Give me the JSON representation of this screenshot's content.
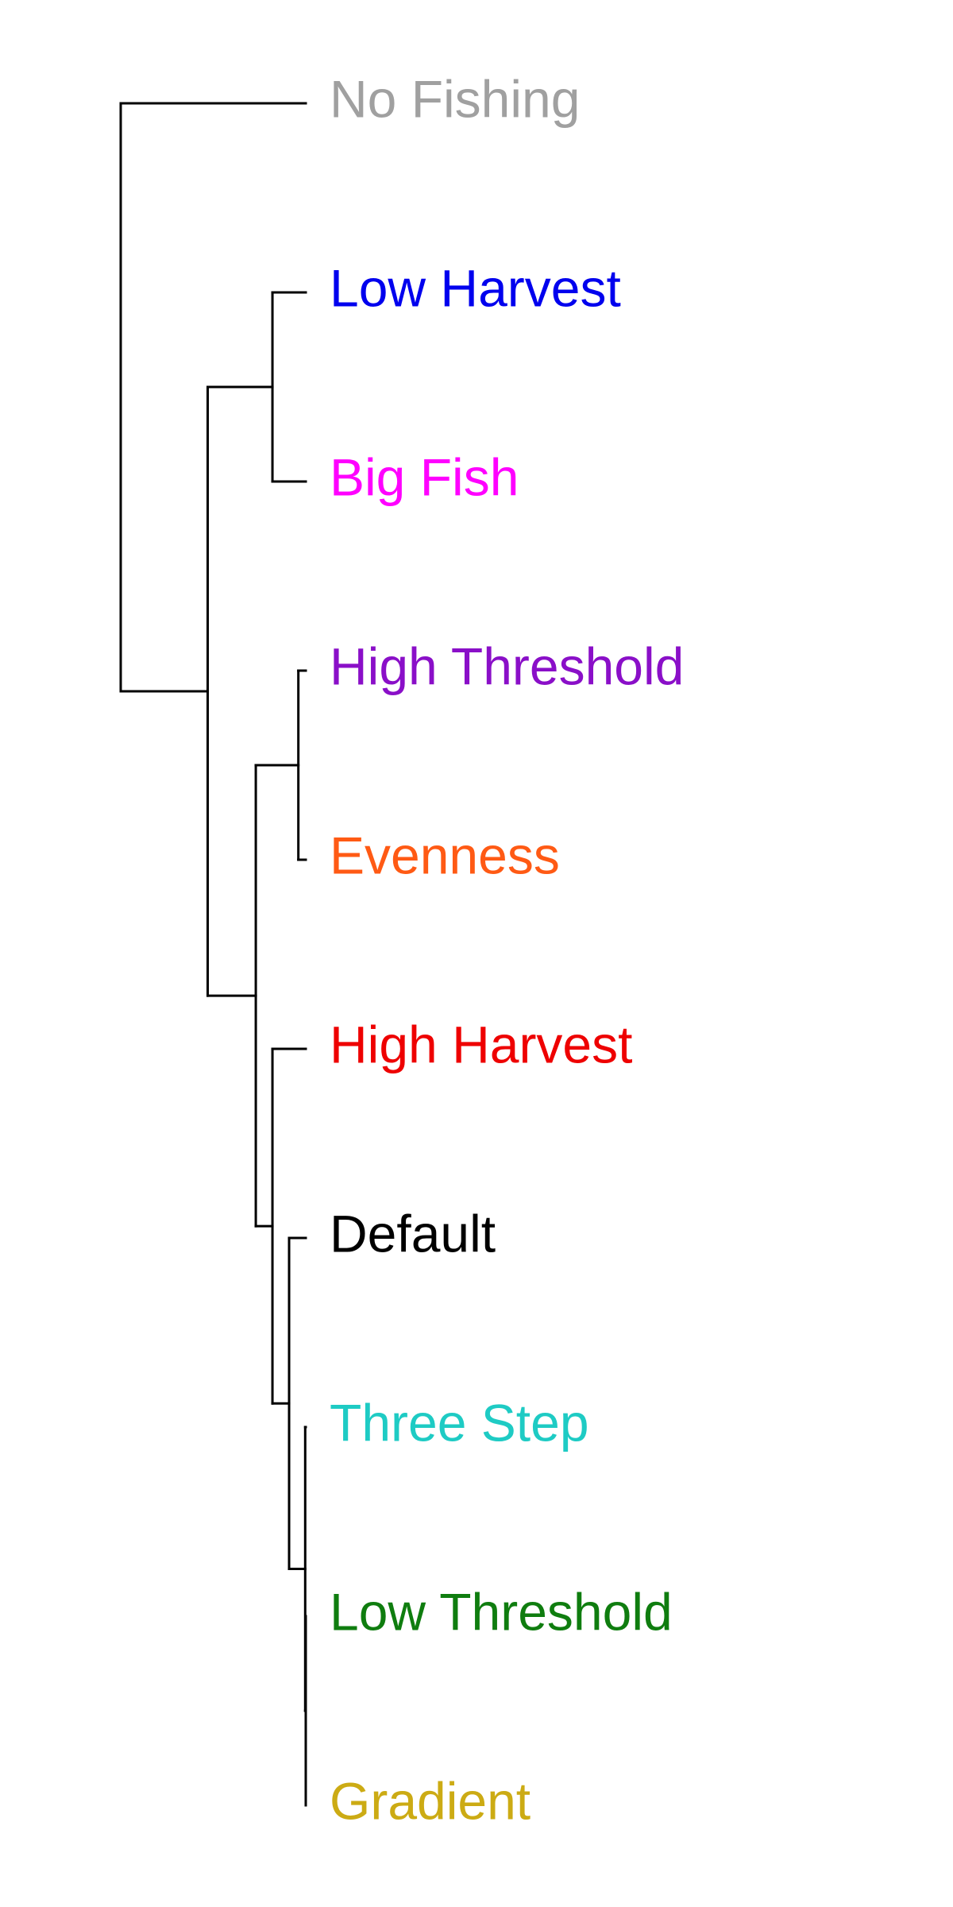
{
  "tree": {
    "leaves": [
      {
        "id": "no-fishing",
        "label": "No Fishing",
        "color": "#a0a0a0"
      },
      {
        "id": "low-harvest",
        "label": "Low Harvest",
        "color": "#0000ee"
      },
      {
        "id": "big-fish",
        "label": "Big Fish",
        "color": "#ff00ff"
      },
      {
        "id": "high-threshold",
        "label": "High Threshold",
        "color": "#8a0fc8"
      },
      {
        "id": "evenness",
        "label": "Evenness",
        "color": "#ff5a14"
      },
      {
        "id": "high-harvest",
        "label": "High Harvest",
        "color": "#ee0000"
      },
      {
        "id": "default",
        "label": "Default",
        "color": "#000000"
      },
      {
        "id": "three-step",
        "label": "Three Step",
        "color": "#1ecbc4"
      },
      {
        "id": "low-threshold",
        "label": "Low Threshold",
        "color": "#0f7d0f"
      },
      {
        "id": "gradient",
        "label": "Gradient",
        "color": "#ccab14"
      }
    ],
    "merges": [
      {
        "a": "low-threshold",
        "b": "gradient",
        "height": 0.0,
        "id": "m1"
      },
      {
        "a": "three-step",
        "b": "m1",
        "height": 0.003,
        "id": "m2"
      },
      {
        "a": "default",
        "b": "m2",
        "height": 0.09,
        "id": "m3"
      },
      {
        "a": "high-harvest",
        "b": "m3",
        "height": 0.18,
        "id": "m4"
      },
      {
        "a": "high-threshold",
        "b": "evenness",
        "height": 0.04,
        "id": "m5"
      },
      {
        "a": "m5",
        "b": "m4",
        "height": 0.27,
        "id": "m6"
      },
      {
        "a": "low-harvest",
        "b": "big-fish",
        "height": 0.18,
        "id": "m7"
      },
      {
        "a": "m7",
        "b": "m6",
        "height": 0.53,
        "id": "m8"
      },
      {
        "a": "no-fishing",
        "b": "m8",
        "height": 1.0,
        "id": "m9"
      }
    ]
  }
}
